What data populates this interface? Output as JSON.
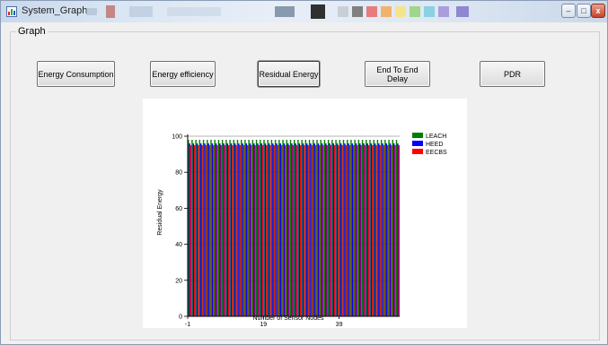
{
  "window": {
    "title": "System_Graph",
    "controls": {
      "minimize": "–",
      "maximize": "□",
      "close": "x"
    }
  },
  "group": {
    "label": "Graph"
  },
  "buttons": {
    "energy_consumption": "Energy Consumption",
    "energy_efficiency": "Energy efficiency",
    "residual_energy": "Residual Energy",
    "end_to_end_delay": "End To End Delay",
    "pdr": "PDR"
  },
  "colors": {
    "leach": "#008000",
    "heed": "#0000ff",
    "eecbs": "#ff0000",
    "grid": "#9a9a9a"
  },
  "chart_data": {
    "type": "bar",
    "xlabel": "Number of Sensor Nodes",
    "ylabel": "Residual Energy",
    "ylim": [
      0,
      100
    ],
    "yticks": [
      0,
      20,
      40,
      60,
      80,
      100
    ],
    "xticks": [
      "-1",
      "19",
      "39"
    ],
    "grid": "horizontal",
    "legend_position": "top-right",
    "legend": [
      "LEACH",
      "HEED",
      "EECBS"
    ],
    "node_count": 56,
    "series": [
      {
        "name": "LEACH",
        "value_per_node": 98
      },
      {
        "name": "HEED",
        "value_per_node": 96
      },
      {
        "name": "EECBS",
        "value_per_node": 95
      }
    ]
  }
}
